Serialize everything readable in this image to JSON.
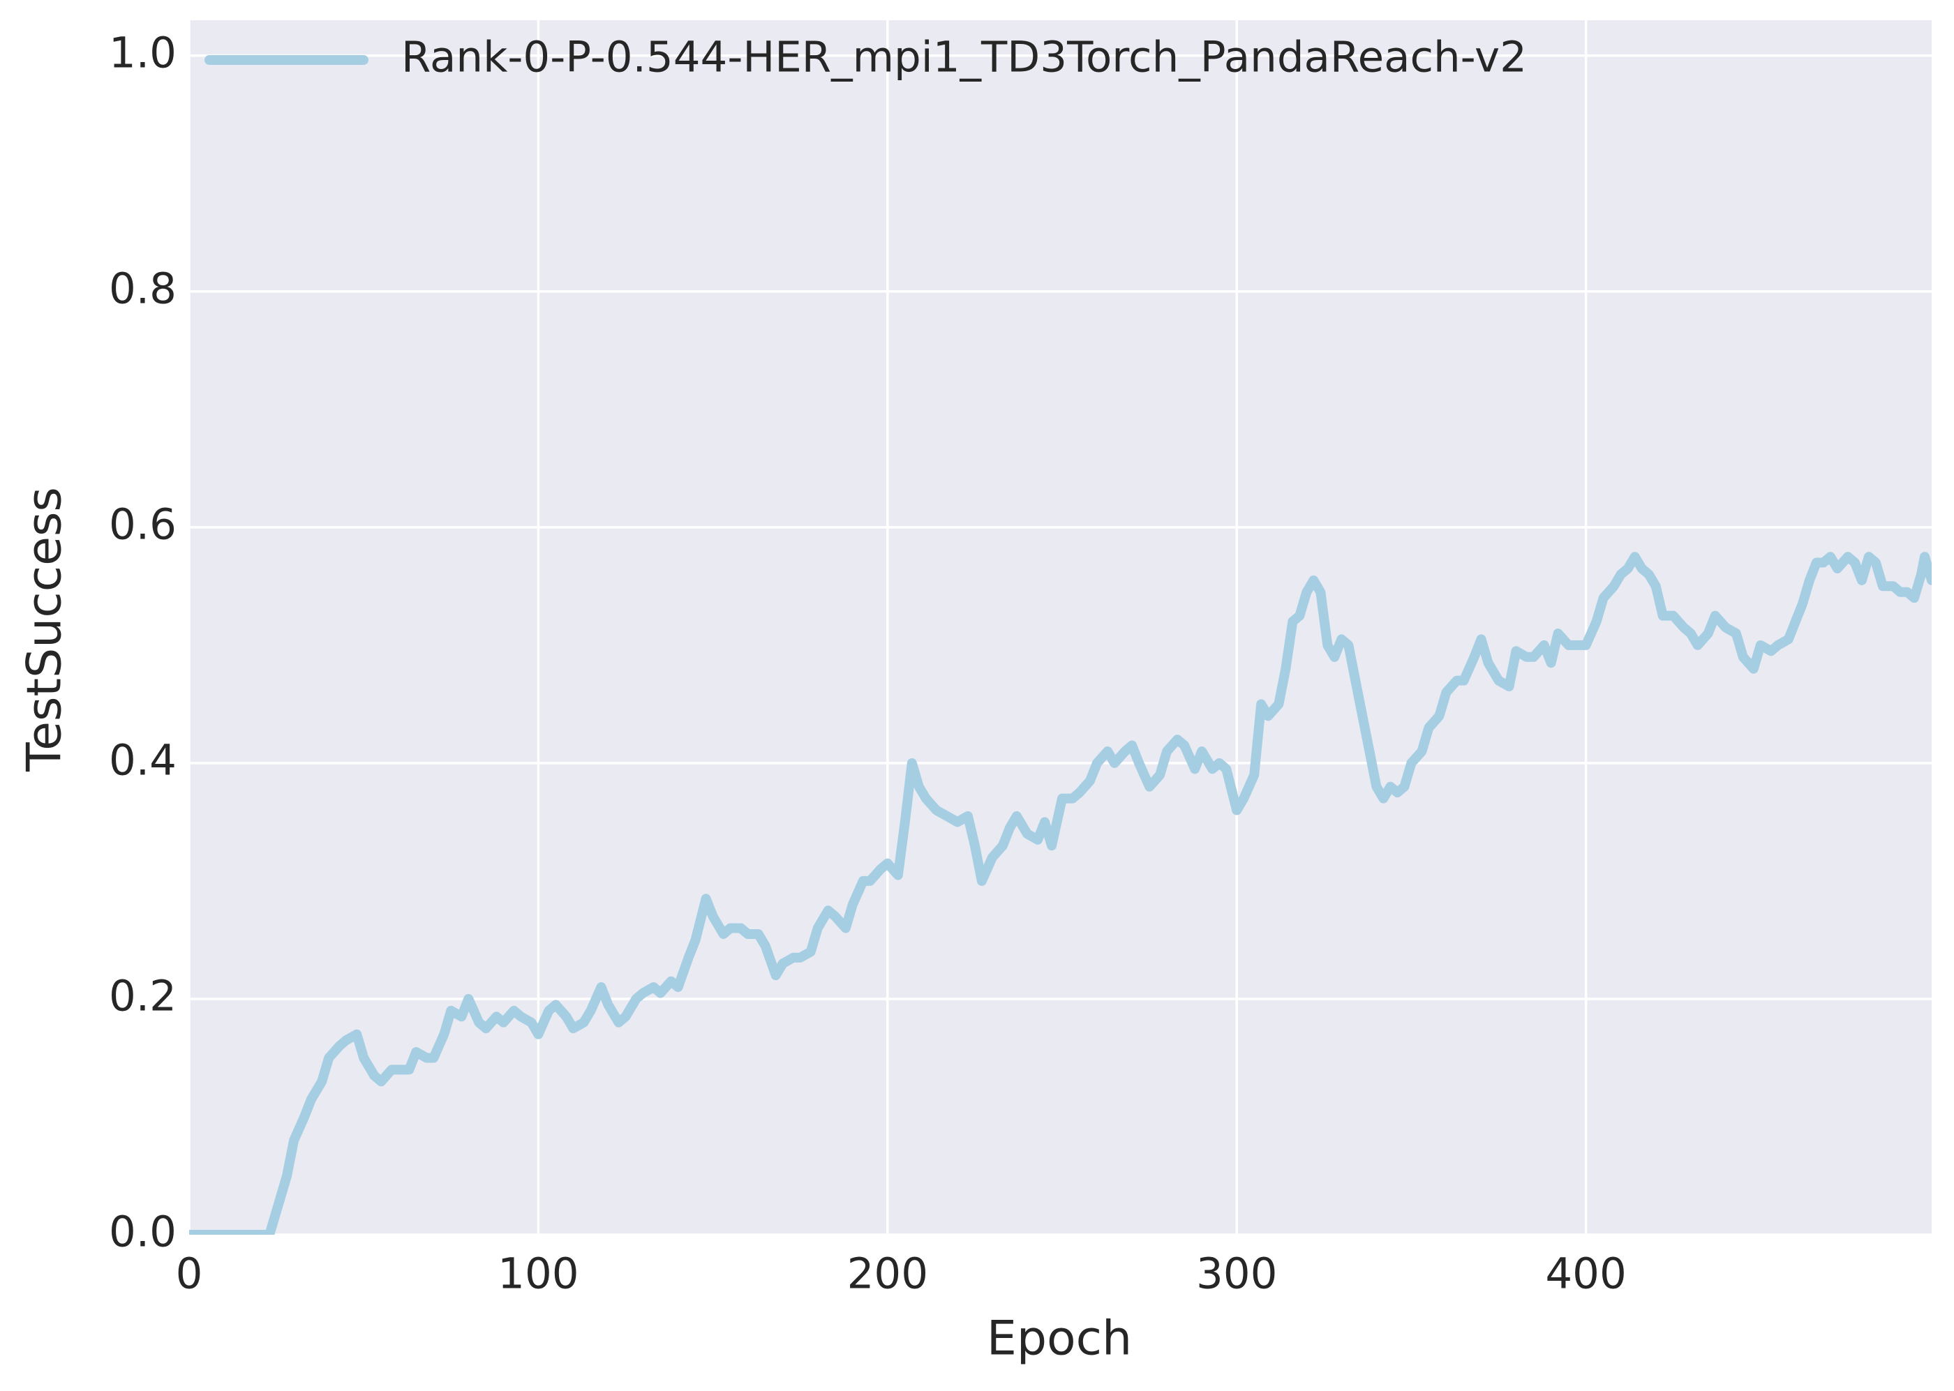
{
  "chart_data": {
    "type": "line",
    "x_label": "Epoch",
    "y_label": "TestSuccess",
    "x": [
      0,
      5,
      10,
      15,
      20,
      23,
      25,
      28,
      30,
      33,
      35,
      38,
      40,
      43,
      45,
      48,
      50,
      53,
      55,
      58,
      60,
      63,
      65,
      68,
      70,
      73,
      75,
      78,
      80,
      83,
      85,
      88,
      90,
      93,
      95,
      98,
      100,
      103,
      105,
      108,
      110,
      113,
      115,
      118,
      120,
      123,
      125,
      128,
      130,
      133,
      135,
      138,
      140,
      143,
      145,
      148,
      150,
      153,
      155,
      158,
      160,
      163,
      165,
      168,
      170,
      173,
      175,
      178,
      180,
      183,
      185,
      188,
      190,
      193,
      195,
      198,
      200,
      203,
      205,
      207,
      209,
      211,
      214,
      217,
      220,
      223,
      225,
      227,
      230,
      233,
      235,
      237,
      240,
      243,
      245,
      247,
      250,
      253,
      255,
      258,
      260,
      263,
      265,
      268,
      270,
      272,
      275,
      278,
      280,
      283,
      285,
      288,
      290,
      293,
      295,
      297,
      300,
      302,
      305,
      307,
      309,
      312,
      314,
      316,
      318,
      320,
      322,
      324,
      326,
      328,
      330,
      332,
      334,
      336,
      338,
      340,
      342,
      344,
      346,
      348,
      350,
      353,
      355,
      358,
      360,
      363,
      365,
      368,
      370,
      372,
      375,
      378,
      380,
      383,
      385,
      388,
      390,
      392,
      395,
      398,
      400,
      403,
      405,
      408,
      410,
      412,
      414,
      416,
      418,
      420,
      422,
      425,
      428,
      430,
      432,
      435,
      437,
      440,
      443,
      445,
      448,
      450,
      453,
      455,
      458,
      460,
      462,
      464,
      466,
      468,
      470,
      472,
      475,
      477,
      479,
      481,
      483,
      485,
      488,
      490,
      492,
      494,
      496,
      497,
      499
    ],
    "series": [
      {
        "name": "Rank-0-P-0.544-HER_mpi1_TD3Torch_PandaReach-v2",
        "color": "#a6cee3",
        "values": [
          0,
          0,
          0,
          0,
          0,
          0,
          0.02,
          0.05,
          0.08,
          0.1,
          0.115,
          0.13,
          0.15,
          0.16,
          0.165,
          0.17,
          0.15,
          0.135,
          0.13,
          0.14,
          0.14,
          0.14,
          0.155,
          0.15,
          0.15,
          0.17,
          0.19,
          0.185,
          0.2,
          0.18,
          0.175,
          0.185,
          0.18,
          0.19,
          0.185,
          0.18,
          0.17,
          0.19,
          0.195,
          0.185,
          0.175,
          0.18,
          0.19,
          0.21,
          0.195,
          0.18,
          0.185,
          0.2,
          0.205,
          0.21,
          0.205,
          0.215,
          0.21,
          0.235,
          0.25,
          0.285,
          0.27,
          0.255,
          0.26,
          0.26,
          0.255,
          0.255,
          0.245,
          0.22,
          0.23,
          0.235,
          0.235,
          0.24,
          0.26,
          0.275,
          0.27,
          0.26,
          0.28,
          0.3,
          0.3,
          0.31,
          0.315,
          0.305,
          0.35,
          0.4,
          0.38,
          0.37,
          0.36,
          0.355,
          0.35,
          0.355,
          0.33,
          0.3,
          0.32,
          0.33,
          0.345,
          0.355,
          0.34,
          0.335,
          0.35,
          0.33,
          0.37,
          0.37,
          0.375,
          0.385,
          0.4,
          0.41,
          0.4,
          0.41,
          0.415,
          0.4,
          0.38,
          0.39,
          0.41,
          0.42,
          0.415,
          0.395,
          0.41,
          0.395,
          0.4,
          0.395,
          0.36,
          0.37,
          0.39,
          0.45,
          0.44,
          0.45,
          0.48,
          0.52,
          0.525,
          0.545,
          0.555,
          0.545,
          0.5,
          0.49,
          0.505,
          0.5,
          0.47,
          0.44,
          0.41,
          0.38,
          0.37,
          0.38,
          0.375,
          0.38,
          0.4,
          0.41,
          0.43,
          0.44,
          0.46,
          0.47,
          0.47,
          0.49,
          0.505,
          0.485,
          0.47,
          0.465,
          0.495,
          0.49,
          0.49,
          0.5,
          0.485,
          0.51,
          0.5,
          0.5,
          0.5,
          0.52,
          0.54,
          0.55,
          0.56,
          0.565,
          0.575,
          0.565,
          0.56,
          0.55,
          0.525,
          0.525,
          0.515,
          0.51,
          0.5,
          0.51,
          0.525,
          0.515,
          0.51,
          0.49,
          0.48,
          0.5,
          0.495,
          0.5,
          0.505,
          0.52,
          0.535,
          0.555,
          0.57,
          0.57,
          0.575,
          0.565,
          0.575,
          0.57,
          0.555,
          0.575,
          0.57,
          0.55,
          0.55,
          0.545,
          0.545,
          0.54,
          0.56,
          0.575,
          0.555
        ]
      }
    ],
    "xlim": [
      0,
      499
    ],
    "ylim": [
      0,
      1.03
    ],
    "xticks": [
      0,
      100,
      200,
      300,
      400
    ],
    "yticks": [
      {
        "value": 0,
        "label": "0.0"
      },
      0.2,
      0.4,
      0.6,
      0.8,
      {
        "value": 1,
        "label": "1.0"
      }
    ],
    "grid": true,
    "legend": "upper left"
  }
}
